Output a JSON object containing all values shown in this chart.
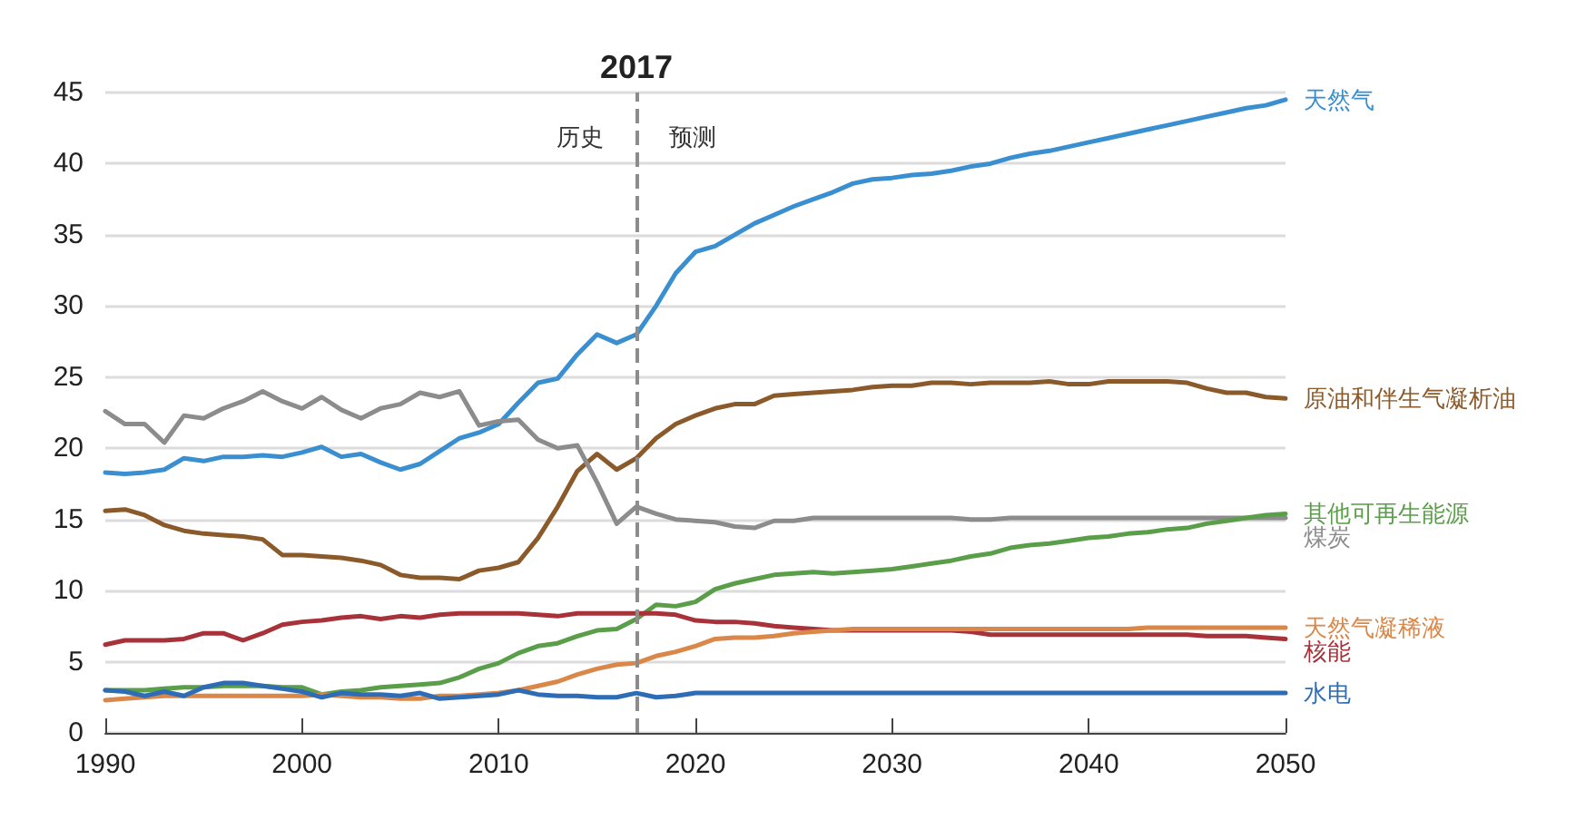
{
  "chart_data": {
    "type": "line",
    "x": [
      1990,
      1991,
      1992,
      1993,
      1994,
      1995,
      1996,
      1997,
      1998,
      1999,
      2000,
      2001,
      2002,
      2003,
      2004,
      2005,
      2006,
      2007,
      2008,
      2009,
      2010,
      2011,
      2012,
      2013,
      2014,
      2015,
      2016,
      2017,
      2018,
      2019,
      2020,
      2021,
      2022,
      2023,
      2024,
      2025,
      2026,
      2027,
      2028,
      2029,
      2030,
      2031,
      2032,
      2033,
      2034,
      2035,
      2036,
      2037,
      2038,
      2039,
      2040,
      2041,
      2042,
      2043,
      2044,
      2045,
      2046,
      2047,
      2048,
      2049,
      2050
    ],
    "series": [
      {
        "name": "天然气",
        "color": "#3a8fd0",
        "values": [
          18.3,
          18.2,
          18.3,
          18.5,
          19.3,
          19.1,
          19.4,
          19.4,
          19.5,
          19.4,
          19.7,
          20.1,
          19.4,
          19.6,
          19.0,
          18.5,
          18.9,
          19.8,
          20.7,
          21.1,
          21.7,
          23.2,
          24.6,
          24.9,
          26.6,
          28.0,
          27.4,
          28.0,
          30.0,
          32.3,
          33.8,
          34.2,
          35.0,
          35.8,
          36.4,
          37.0,
          37.5,
          38.0,
          38.6,
          38.9,
          39.0,
          39.2,
          39.3,
          39.5,
          39.8,
          40.0,
          40.4,
          40.7,
          40.9,
          41.2,
          41.5,
          41.8,
          42.1,
          42.4,
          42.7,
          43.0,
          43.3,
          43.6,
          43.9,
          44.1,
          44.5
        ]
      },
      {
        "name": "原油和伴生气凝析油",
        "color": "#8b5a2b",
        "values": [
          15.6,
          15.7,
          15.3,
          14.6,
          14.2,
          14.0,
          13.9,
          13.8,
          13.6,
          12.5,
          12.5,
          12.4,
          12.3,
          12.1,
          11.8,
          11.1,
          10.9,
          10.9,
          10.8,
          11.4,
          11.6,
          12.0,
          13.7,
          15.9,
          18.4,
          19.6,
          18.5,
          19.3,
          20.7,
          21.7,
          22.3,
          22.8,
          23.1,
          23.1,
          23.7,
          23.8,
          23.9,
          24.0,
          24.1,
          24.3,
          24.4,
          24.4,
          24.6,
          24.6,
          24.5,
          24.6,
          24.6,
          24.6,
          24.7,
          24.5,
          24.5,
          24.7,
          24.7,
          24.7,
          24.7,
          24.6,
          24.2,
          23.9,
          23.9,
          23.6,
          23.5
        ]
      },
      {
        "name": "煤炭",
        "color": "#8c8c8c",
        "values": [
          22.6,
          21.7,
          21.7,
          20.4,
          22.3,
          22.1,
          22.8,
          23.3,
          24.0,
          23.3,
          22.8,
          23.6,
          22.7,
          22.1,
          22.8,
          23.1,
          23.9,
          23.6,
          24.0,
          21.6,
          21.9,
          22.0,
          20.6,
          20.0,
          20.2,
          17.6,
          14.7,
          15.9,
          15.4,
          15.0,
          14.9,
          14.8,
          14.5,
          14.4,
          14.9,
          14.9,
          15.1,
          15.1,
          15.1,
          15.1,
          15.1,
          15.1,
          15.1,
          15.1,
          15.0,
          15.0,
          15.1,
          15.1,
          15.1,
          15.1,
          15.1,
          15.1,
          15.1,
          15.1,
          15.1,
          15.1,
          15.1,
          15.1,
          15.1,
          15.1,
          15.1
        ]
      },
      {
        "name": "其他可再生能源",
        "color": "#5a9e4a",
        "values": [
          3.0,
          3.0,
          3.0,
          3.1,
          3.2,
          3.2,
          3.3,
          3.3,
          3.3,
          3.2,
          3.2,
          2.7,
          2.9,
          3.0,
          3.2,
          3.3,
          3.4,
          3.5,
          3.9,
          4.5,
          4.9,
          5.6,
          6.1,
          6.3,
          6.8,
          7.2,
          7.3,
          8.0,
          9.0,
          8.9,
          9.2,
          10.1,
          10.5,
          10.8,
          11.1,
          11.2,
          11.3,
          11.2,
          11.3,
          11.4,
          11.5,
          11.7,
          11.9,
          12.1,
          12.4,
          12.6,
          13.0,
          13.2,
          13.3,
          13.5,
          13.7,
          13.8,
          14.0,
          14.1,
          14.3,
          14.4,
          14.7,
          14.9,
          15.1,
          15.3,
          15.4
        ]
      },
      {
        "name": "核能",
        "color": "#a8323a",
        "values": [
          6.2,
          6.5,
          6.5,
          6.5,
          6.6,
          7.0,
          7.0,
          6.5,
          7.0,
          7.6,
          7.8,
          7.9,
          8.1,
          8.2,
          8.0,
          8.2,
          8.1,
          8.3,
          8.4,
          8.4,
          8.4,
          8.4,
          8.3,
          8.2,
          8.4,
          8.4,
          8.4,
          8.4,
          8.4,
          8.3,
          7.9,
          7.8,
          7.8,
          7.7,
          7.5,
          7.4,
          7.3,
          7.2,
          7.2,
          7.2,
          7.2,
          7.2,
          7.2,
          7.2,
          7.1,
          6.9,
          6.9,
          6.9,
          6.9,
          6.9,
          6.9,
          6.9,
          6.9,
          6.9,
          6.9,
          6.9,
          6.8,
          6.8,
          6.8,
          6.7,
          6.6
        ]
      },
      {
        "name": "天然气凝稀液",
        "color": "#d9884a",
        "values": [
          2.3,
          2.4,
          2.5,
          2.6,
          2.6,
          2.6,
          2.6,
          2.6,
          2.6,
          2.6,
          2.6,
          2.7,
          2.6,
          2.5,
          2.5,
          2.4,
          2.4,
          2.6,
          2.6,
          2.7,
          2.8,
          3.0,
          3.3,
          3.6,
          4.1,
          4.5,
          4.8,
          4.9,
          5.4,
          5.7,
          6.1,
          6.6,
          6.7,
          6.7,
          6.8,
          7.0,
          7.1,
          7.2,
          7.3,
          7.3,
          7.3,
          7.3,
          7.3,
          7.3,
          7.3,
          7.3,
          7.3,
          7.3,
          7.3,
          7.3,
          7.3,
          7.3,
          7.3,
          7.4,
          7.4,
          7.4,
          7.4,
          7.4,
          7.4,
          7.4,
          7.4
        ]
      },
      {
        "name": "水电",
        "color": "#2e6db5",
        "values": [
          3.0,
          2.9,
          2.6,
          2.9,
          2.6,
          3.2,
          3.5,
          3.5,
          3.3,
          3.1,
          2.9,
          2.5,
          2.8,
          2.7,
          2.7,
          2.6,
          2.8,
          2.4,
          2.5,
          2.6,
          2.7,
          3.0,
          2.7,
          2.6,
          2.6,
          2.5,
          2.5,
          2.8,
          2.5,
          2.6,
          2.8,
          2.8,
          2.8,
          2.8,
          2.8,
          2.8,
          2.8,
          2.8,
          2.8,
          2.8,
          2.8,
          2.8,
          2.8,
          2.8,
          2.8,
          2.8,
          2.8,
          2.8,
          2.8,
          2.8,
          2.8,
          2.8,
          2.8,
          2.8,
          2.8,
          2.8,
          2.8,
          2.8,
          2.8,
          2.8,
          2.8
        ]
      }
    ],
    "xlim": [
      1990,
      2050
    ],
    "xticks": [
      1990,
      2000,
      2010,
      2020,
      2030,
      2040,
      2050
    ],
    "ylim": [
      0,
      45
    ],
    "yticks": [
      0,
      5,
      10,
      15,
      20,
      25,
      30,
      35,
      40,
      45
    ],
    "grid": "y",
    "legend": false,
    "marker": "none",
    "line_style": "solid",
    "ref_lines": [
      {
        "axis": "x",
        "value": 2017,
        "label": "2017",
        "color": "#8c8c8c",
        "line_style": "dashed"
      }
    ],
    "annotations": [
      "历史",
      "预测"
    ]
  }
}
